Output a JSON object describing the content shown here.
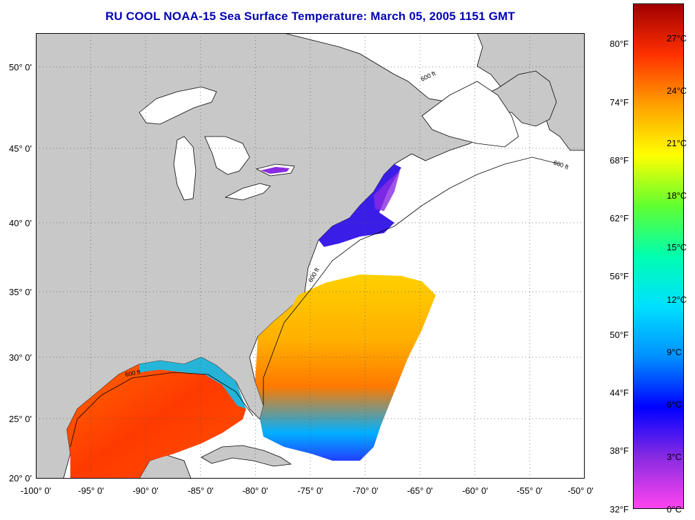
{
  "title": "RU COOL  NOAA-15  Sea Surface Temperature:  March 05, 2005 1151 GMT",
  "map": {
    "lat_labels": [
      "50° 0'",
      "45° 0'",
      "40° 0'",
      "35° 0'",
      "30° 0'",
      "25° 0'",
      "20° 0'"
    ],
    "lon_labels": [
      "-100° 0'",
      "-95° 0'",
      "-90° 0'",
      "-85° 0'",
      "-80° 0'",
      "-75° 0'",
      "-70° 0'",
      "-65° 0'",
      "-60° 0'",
      "-55° 0'",
      "-50° 0'"
    ],
    "isobath_label": "600 ft",
    "colors": {
      "land": "#c8c8c8",
      "cloud_mask": "#ffffff",
      "coast": "#000000",
      "grid": "#555555"
    }
  },
  "colorbar": {
    "fahrenheit_labels": [
      "80°F",
      "74°F",
      "68°F",
      "62°F",
      "56°F",
      "50°F",
      "44°F",
      "38°F",
      "32°F"
    ],
    "celsius_labels": [
      "27°C",
      "24°C",
      "21°C",
      "18°C",
      "15°C",
      "12°C",
      "9°C",
      "6°C",
      "3°C",
      "0°C"
    ],
    "colors": [
      "#ff44ee",
      "#8a2be2",
      "#0000ff",
      "#0090ff",
      "#00e0ff",
      "#00ffb0",
      "#60ff30",
      "#ffff00",
      "#ffa000",
      "#ff3000",
      "#a00000"
    ]
  }
}
